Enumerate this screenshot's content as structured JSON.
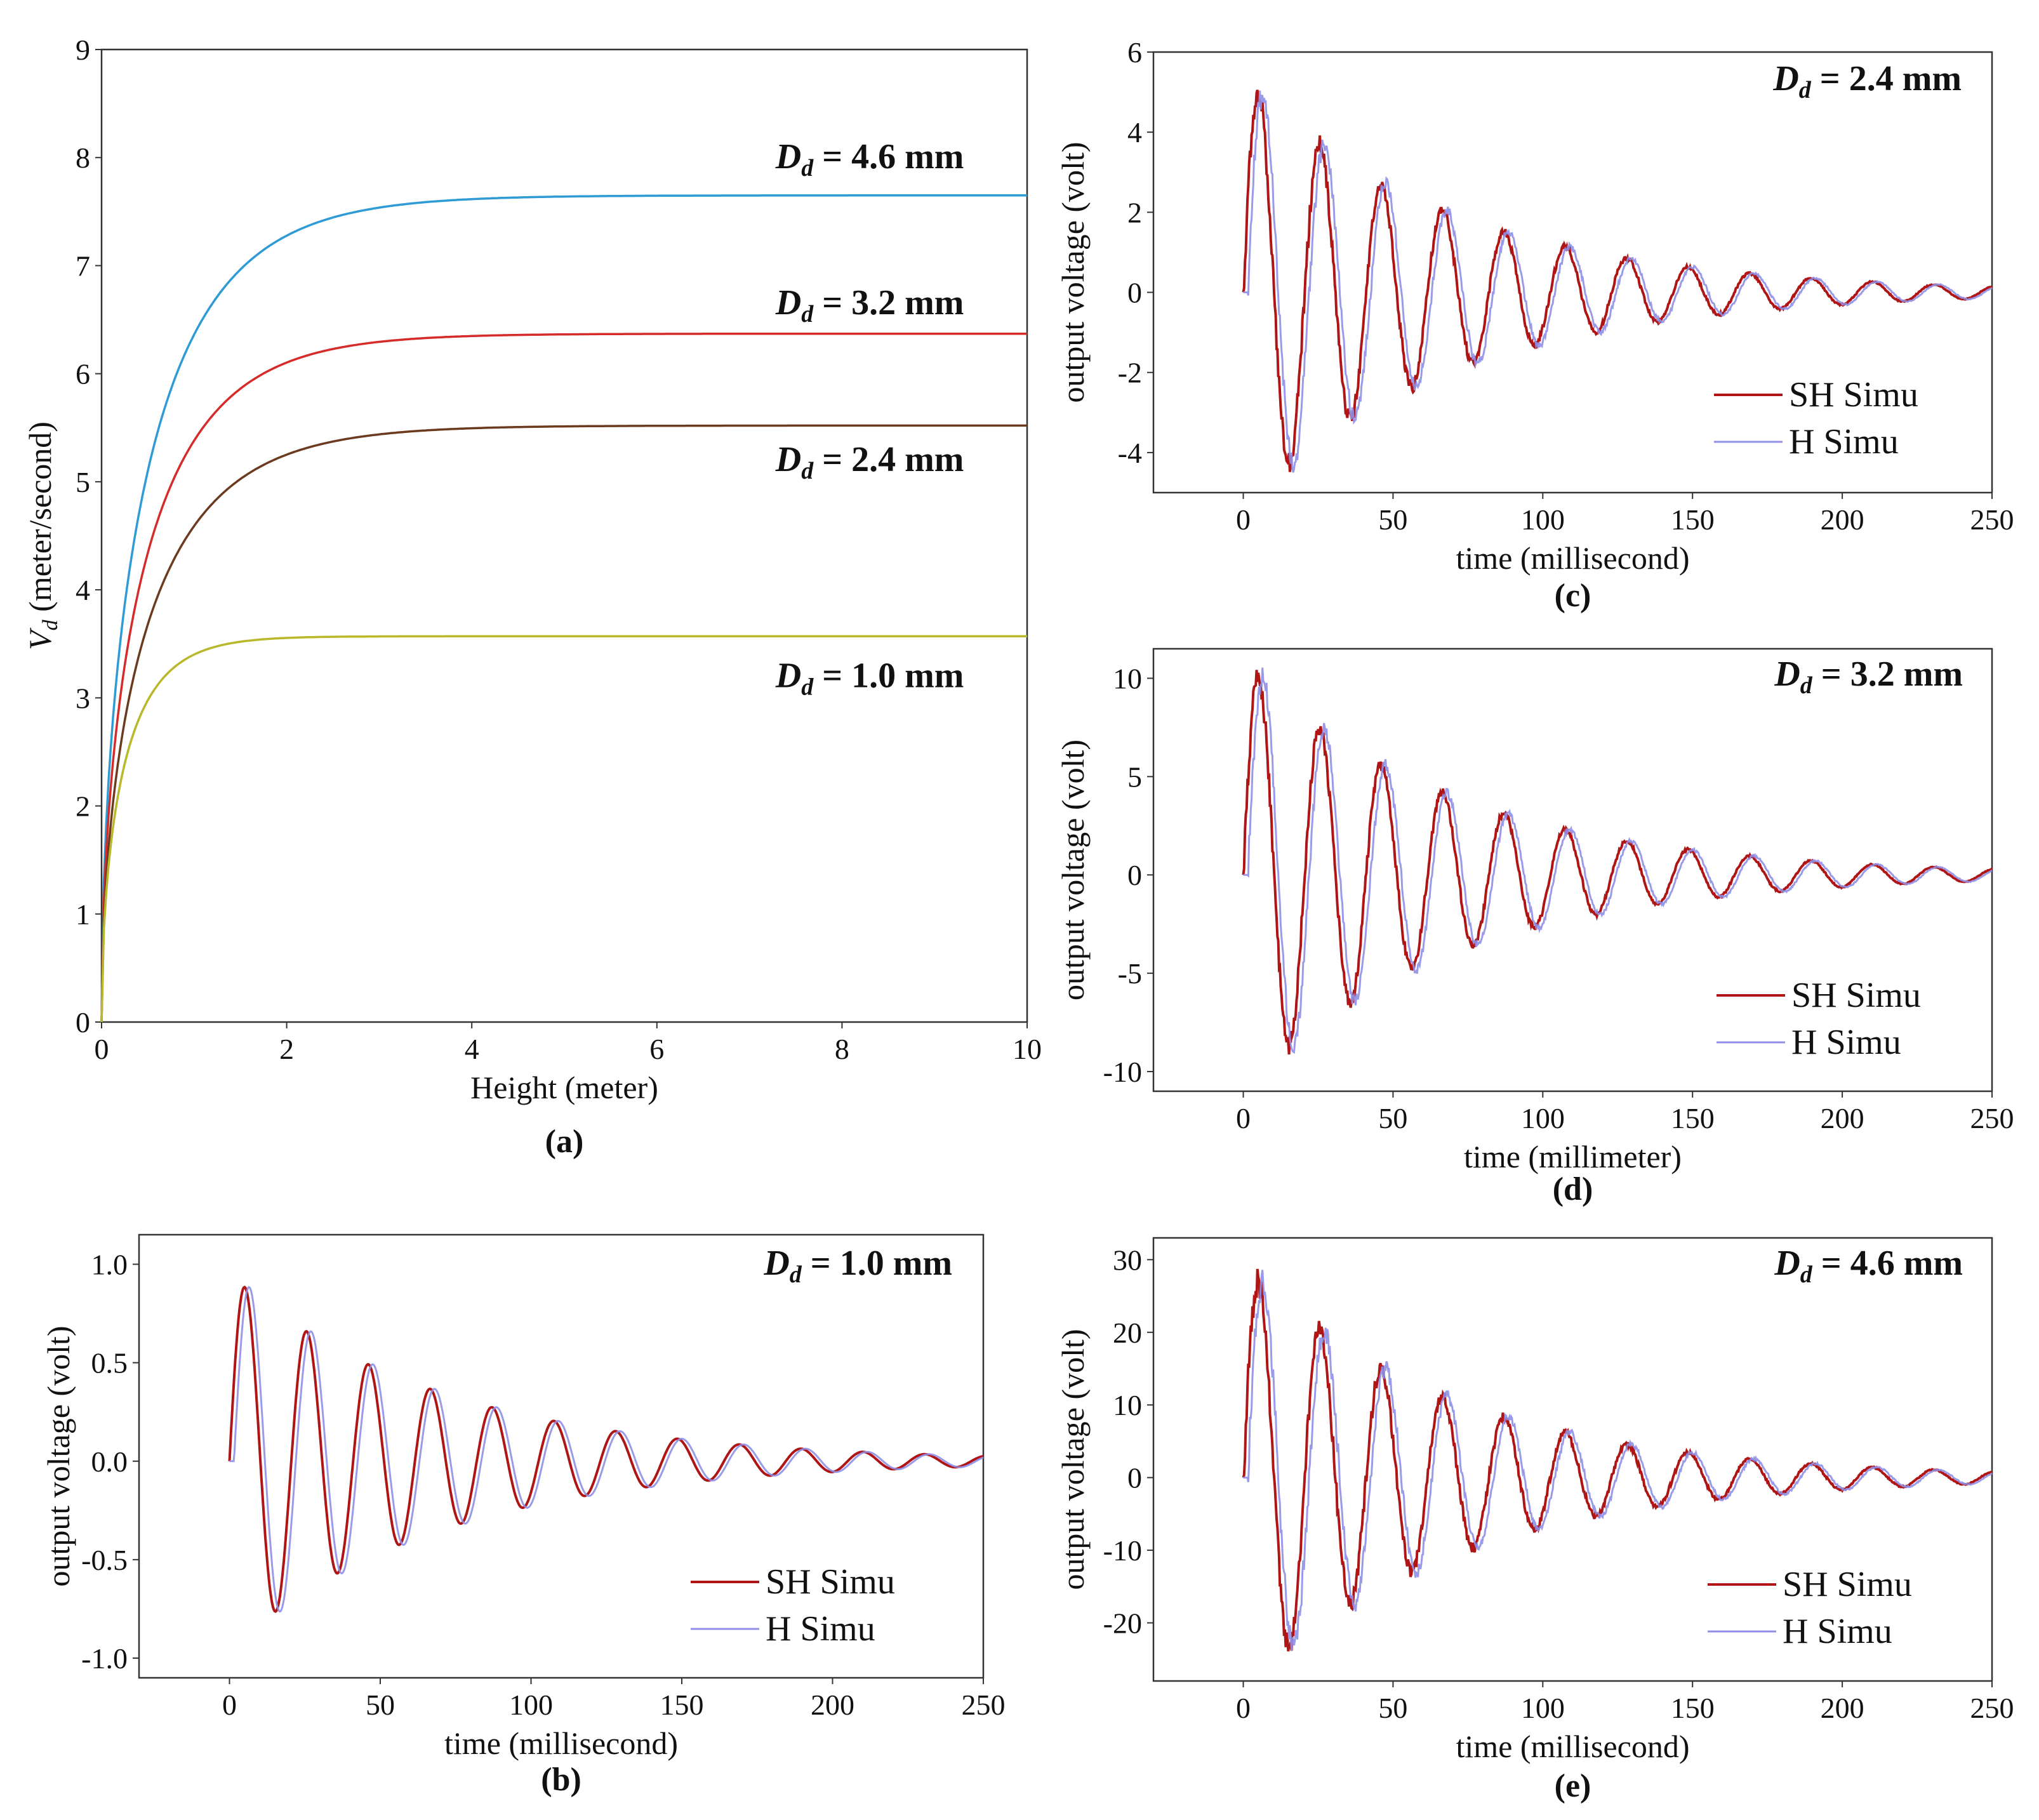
{
  "chart_data": [
    {
      "id": "a",
      "type": "line",
      "caption": "(a)",
      "xlabel": "Height (meter)",
      "ylabel_main": "V",
      "ylabel_sub": "d",
      "ylabel_rest": " (meter/second)",
      "xlim": [
        0,
        10
      ],
      "ylim": [
        0,
        9
      ],
      "xticks": [
        "0",
        "2",
        "4",
        "6",
        "8",
        "10"
      ],
      "yticks": [
        "0",
        "1",
        "2",
        "3",
        "4",
        "5",
        "6",
        "7",
        "8",
        "9"
      ],
      "series": [
        {
          "name": "D_d = 4.6 mm",
          "label": "= 4.6 mm",
          "color": "#2e9bd6",
          "terminal": 7.65,
          "tau": 0.85,
          "annot_anchor": [
            8.3,
            7.9
          ]
        },
        {
          "name": "D_d = 3.2 mm",
          "label": "= 3.2 mm",
          "color": "#d62b2b",
          "terminal": 6.37,
          "tau": 0.8,
          "annot_anchor": [
            8.3,
            6.55
          ]
        },
        {
          "name": "D_d = 2.4 mm",
          "label": "= 2.4 mm",
          "color": "#6b3a1f",
          "terminal": 5.52,
          "tau": 0.85,
          "annot_anchor": [
            8.3,
            5.1
          ]
        },
        {
          "name": "D_d = 1.0 mm",
          "label": "= 1.0 mm",
          "color": "#b8b82a",
          "terminal": 3.57,
          "tau": 0.42,
          "annot_anchor": [
            8.3,
            3.1
          ]
        }
      ]
    },
    {
      "id": "b",
      "type": "line",
      "caption": "(b)",
      "annotation": "= 1.0 mm",
      "xlabel": "time (millisecond)",
      "ylabel": "output voltage (volt)",
      "xlim": [
        -30,
        250
      ],
      "ylim": [
        -1.1,
        1.15
      ],
      "xticks": [
        "0",
        "50",
        "100",
        "150",
        "200",
        "250"
      ],
      "yticks": [
        "-1.0",
        "-0.5",
        "0.0",
        "0.5",
        "1.0"
      ],
      "amplitude": 0.95,
      "period_ms": 20.5,
      "decay_ms": 70,
      "noise": 0,
      "series": [
        {
          "name": "SH Simu",
          "color": "#b01515",
          "shift_ms": 0
        },
        {
          "name": "H Simu",
          "color": "#8f8fe8",
          "shift_ms": 1.5
        }
      ]
    },
    {
      "id": "c",
      "type": "line",
      "caption": "(c)",
      "annotation": "= 2.4 mm",
      "xlabel": "time (millisecond)",
      "ylabel": "output voltage (volt)",
      "xlim": [
        -30,
        250
      ],
      "ylim": [
        -5,
        6
      ],
      "xticks": [
        "0",
        "50",
        "100",
        "150",
        "200",
        "250"
      ],
      "yticks": [
        "-4",
        "-2",
        "0",
        "2",
        "4",
        "6"
      ],
      "amplitude": 5.3,
      "period_ms": 20.5,
      "decay_ms": 70,
      "noise": 0.35,
      "series": [
        {
          "name": "SH Simu",
          "color": "#b01515",
          "shift_ms": 0
        },
        {
          "name": "H Simu",
          "color": "#8f8fe8",
          "shift_ms": 1.5
        }
      ]
    },
    {
      "id": "d",
      "type": "line",
      "caption": "(d)",
      "annotation": "= 3.2 mm",
      "xlabel": "time (millimeter)",
      "ylabel": "output voltage (volt)",
      "xlim": [
        -30,
        250
      ],
      "ylim": [
        -11,
        11.5
      ],
      "xticks": [
        "0",
        "50",
        "100",
        "150",
        "200",
        "250"
      ],
      "yticks": [
        "-10",
        "-5",
        "0",
        "5",
        "10"
      ],
      "amplitude": 10.8,
      "period_ms": 20.5,
      "decay_ms": 70,
      "noise": 0.6,
      "series": [
        {
          "name": "SH Simu",
          "color": "#b01515",
          "shift_ms": 0
        },
        {
          "name": "H Simu",
          "color": "#8f8fe8",
          "shift_ms": 1.5
        }
      ]
    },
    {
      "id": "e",
      "type": "line",
      "caption": "(e)",
      "annotation": "= 4.6 mm",
      "xlabel": "time (millisecond)",
      "ylabel": "output voltage (volt)",
      "xlim": [
        -30,
        250
      ],
      "ylim": [
        -28,
        33
      ],
      "xticks": [
        "0",
        "50",
        "100",
        "150",
        "200",
        "250"
      ],
      "yticks": [
        "-20",
        "-10",
        "0",
        "10",
        "20",
        "30"
      ],
      "amplitude": 29,
      "period_ms": 20.5,
      "decay_ms": 70,
      "noise": 2.2,
      "series": [
        {
          "name": "SH Simu",
          "color": "#b01515",
          "shift_ms": 0
        },
        {
          "name": "H Simu",
          "color": "#8f8fe8",
          "shift_ms": 1.5
        }
      ]
    }
  ],
  "symbols": {
    "D": "D",
    "d": "d"
  }
}
